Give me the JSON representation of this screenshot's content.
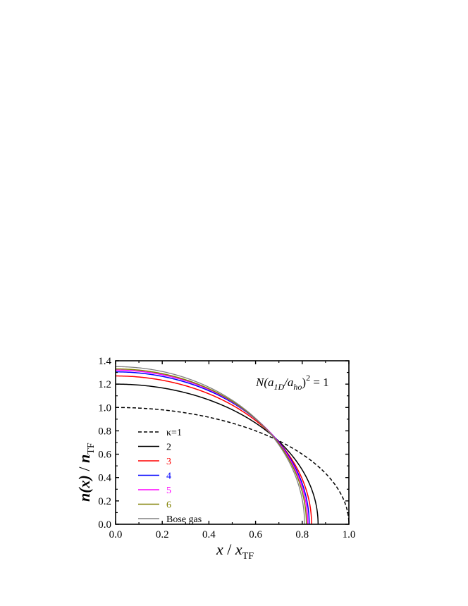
{
  "chart_data": {
    "type": "line",
    "xlabel": {
      "main": "x",
      "sep": " / ",
      "var": "x",
      "sub": "TF"
    },
    "ylabel": {
      "main": "n(x)",
      "sep": " / ",
      "var": "n",
      "sub": "TF"
    },
    "xlim": [
      0.0,
      1.0
    ],
    "ylim": [
      0.0,
      1.4
    ],
    "xticks": [
      "0.0",
      "0.2",
      "0.4",
      "0.6",
      "0.8",
      "1.0"
    ],
    "yticks": [
      "0.0",
      "0.2",
      "0.4",
      "0.6",
      "0.8",
      "1.0",
      "1.2",
      "1.4"
    ],
    "x_tick_values": [
      0.0,
      0.2,
      0.4,
      0.6,
      0.8,
      1.0
    ],
    "y_tick_values": [
      0.0,
      0.2,
      0.4,
      0.6,
      0.8,
      1.0,
      1.2,
      1.4
    ],
    "annotation": {
      "a": "N(a",
      "sub1": "1D",
      "b": "/a",
      "sub2": "ho",
      "c": ")",
      "sup": "2",
      "d": " = 1"
    },
    "legend_position": "left",
    "grid": false,
    "series": [
      {
        "name": "κ=1",
        "color": "#000000",
        "dash": "dashed",
        "n0": 1.0,
        "xe": 1.0
      },
      {
        "name": "2",
        "color": "#000000",
        "dash": "solid",
        "n0": 1.2,
        "xe": 0.868
      },
      {
        "name": "3",
        "color": "#ff0000",
        "dash": "solid",
        "n0": 1.27,
        "xe": 0.84
      },
      {
        "name": "4",
        "color": "#0000ff",
        "dash": "solid",
        "n0": 1.305,
        "xe": 0.83
      },
      {
        "name": "5",
        "color": "#ff00ff",
        "dash": "solid",
        "n0": 1.32,
        "xe": 0.824
      },
      {
        "name": "6",
        "color": "#808000",
        "dash": "solid",
        "n0": 1.33,
        "xe": 0.818
      },
      {
        "name": "Bose gas",
        "color": "#808080",
        "dash": "solid",
        "n0": 1.35,
        "xe": 0.81
      }
    ]
  }
}
